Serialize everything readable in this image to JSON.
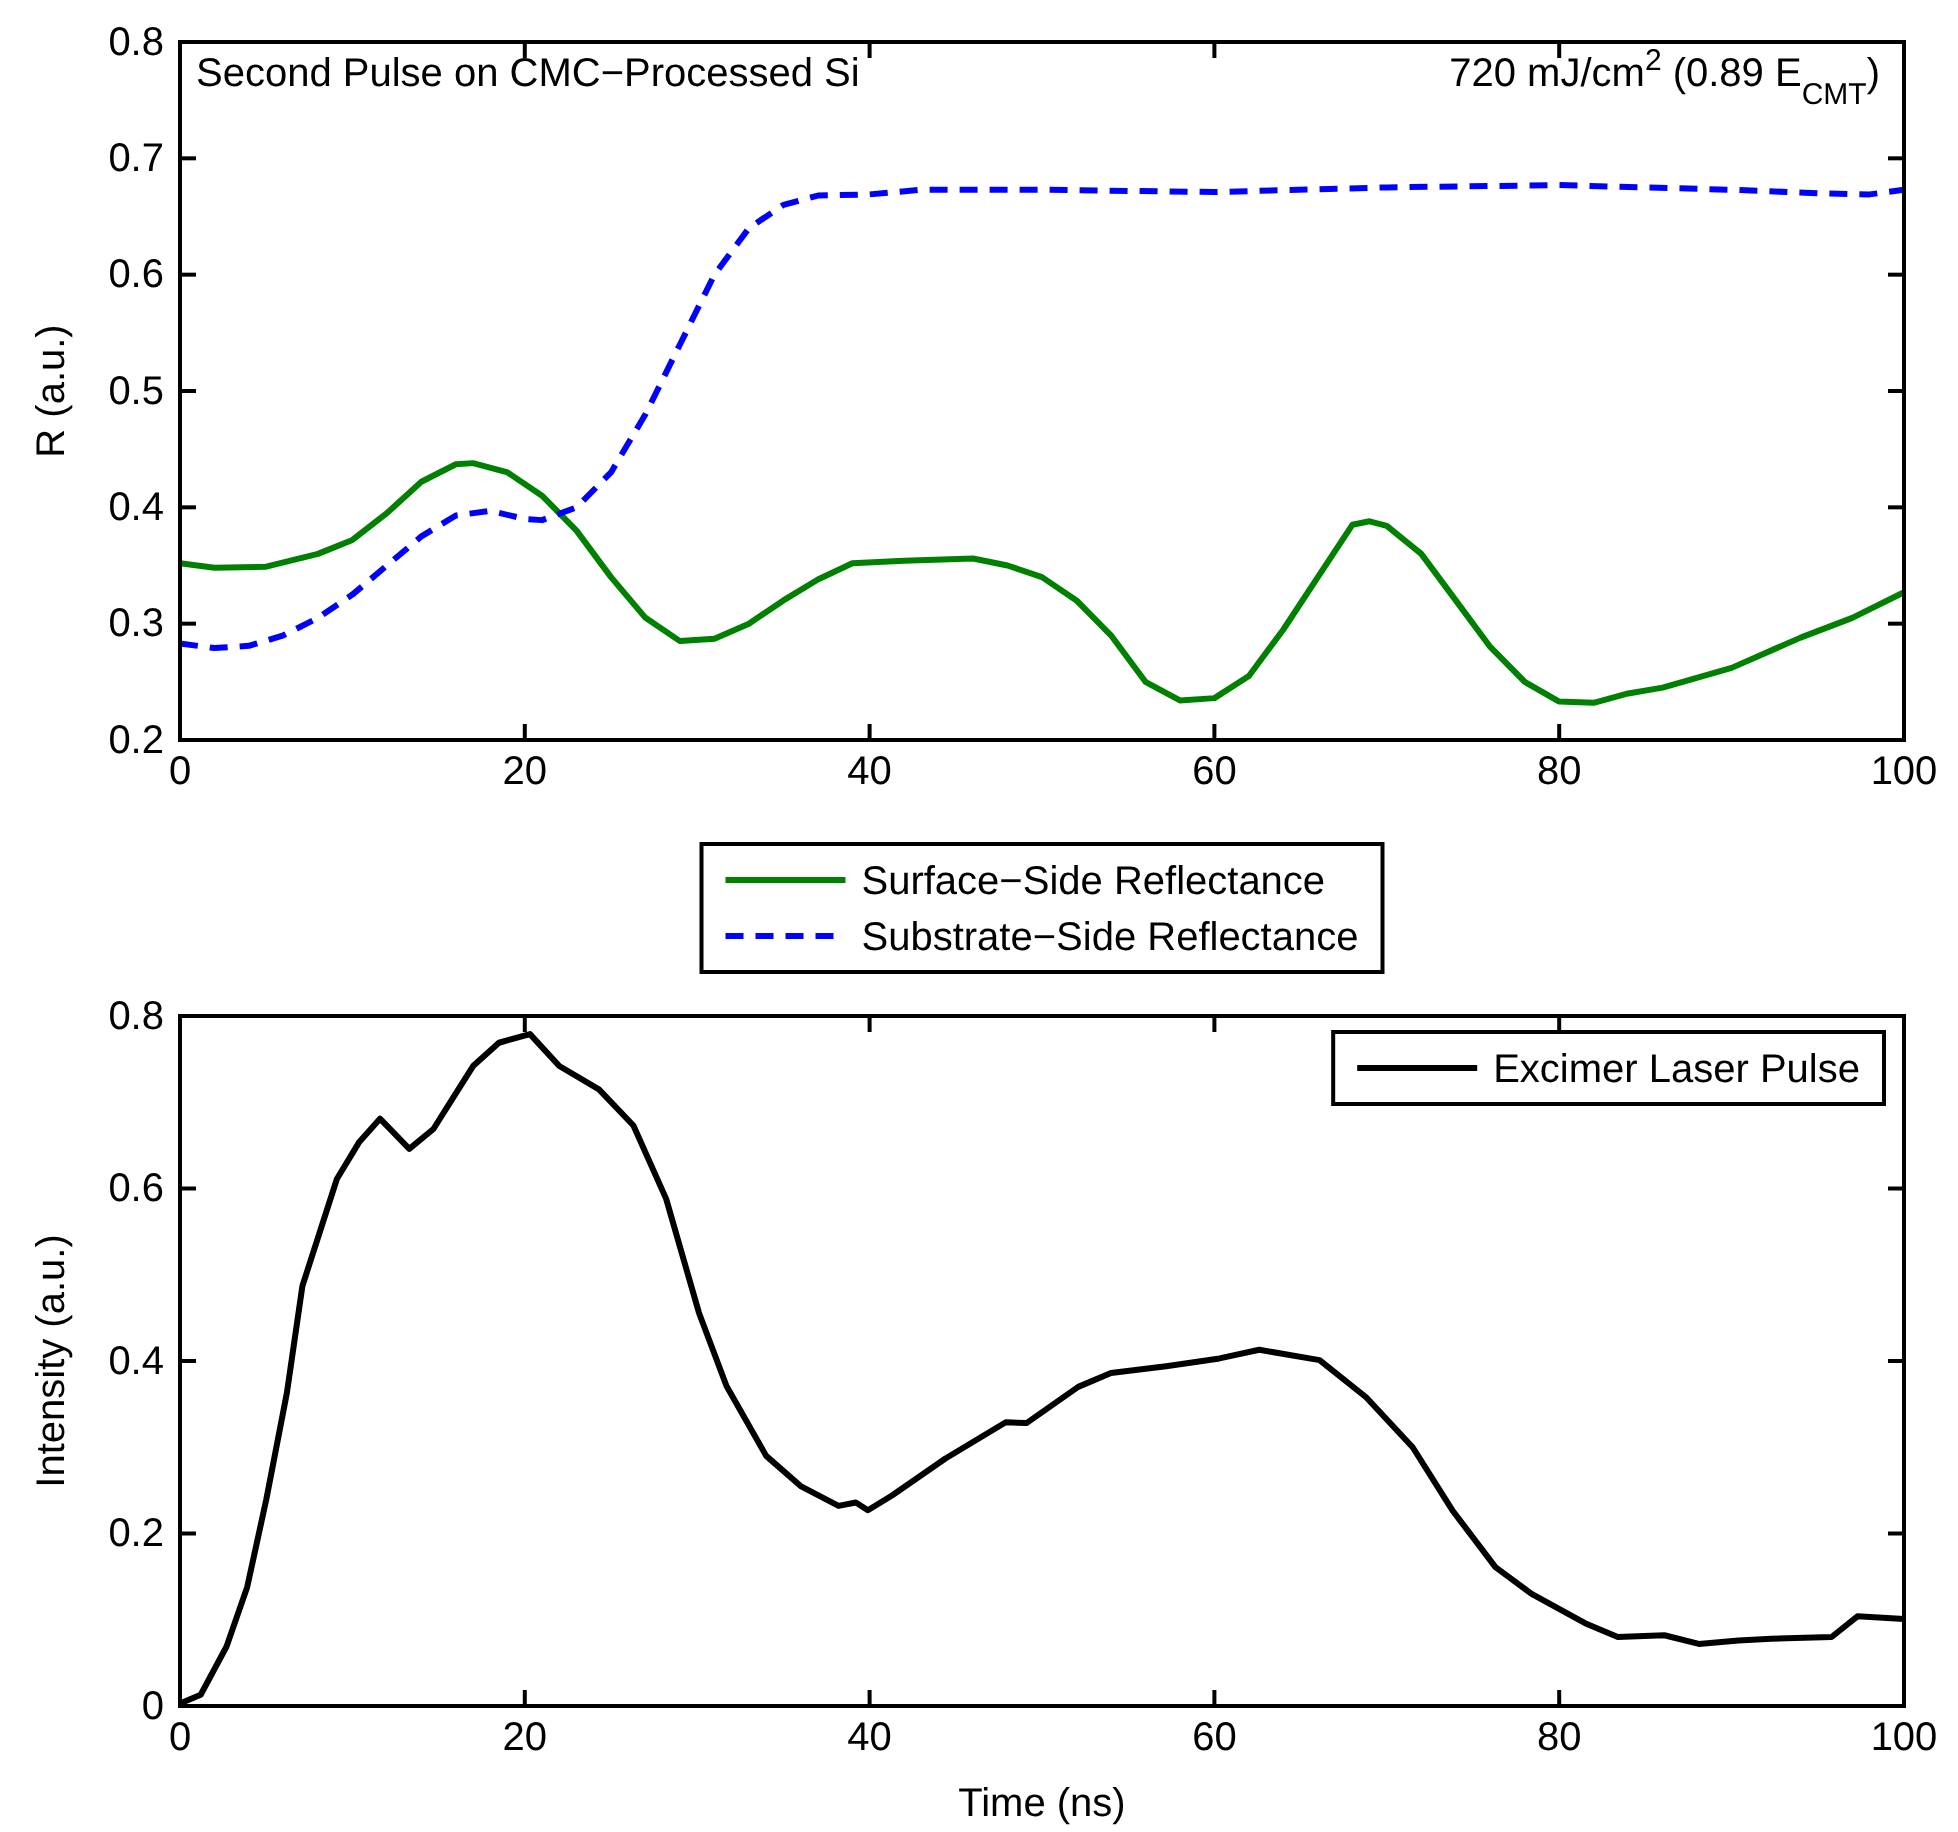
{
  "chart_data": [
    {
      "type": "line",
      "ylabel": "R (a.u.)",
      "annotations": [
        "Second Pulse on CMC−Processed Si",
        "720 mJ/cm$^{2}$ (0.89 E$_{CMT}$)"
      ],
      "xlim": [
        0,
        100
      ],
      "xticks": [
        0,
        20,
        40,
        60,
        80,
        100
      ],
      "ylim": [
        0.2,
        0.8
      ],
      "yticks": [
        0.2,
        0.3,
        0.4,
        0.5,
        0.6,
        0.7,
        0.8
      ],
      "legend": "bottom",
      "grid": false,
      "series": [
        {
          "name": "Surface−Side Reflectance",
          "color": "#008000",
          "line_style": "solid",
          "x": [
            0,
            2,
            5,
            8,
            10,
            12,
            14,
            16,
            17,
            19,
            21,
            23,
            25,
            27,
            29,
            31,
            33,
            35,
            37,
            39,
            42,
            46,
            48,
            50,
            52,
            54,
            56,
            58,
            60,
            62,
            64,
            66,
            68,
            69,
            70,
            72,
            74,
            76,
            78,
            80,
            82,
            84,
            86,
            90,
            94,
            97,
            100
          ],
          "values": [
            0.352,
            0.348,
            0.349,
            0.36,
            0.372,
            0.395,
            0.422,
            0.437,
            0.438,
            0.43,
            0.41,
            0.38,
            0.34,
            0.305,
            0.285,
            0.287,
            0.3,
            0.32,
            0.338,
            0.352,
            0.354,
            0.356,
            0.35,
            0.34,
            0.32,
            0.29,
            0.25,
            0.234,
            0.236,
            0.255,
            0.295,
            0.34,
            0.385,
            0.388,
            0.384,
            0.36,
            0.32,
            0.28,
            0.25,
            0.233,
            0.232,
            0.24,
            0.245,
            0.262,
            0.288,
            0.305,
            0.327
          ]
        },
        {
          "name": "Substrate−Side Reflectance",
          "color": "#0000ff",
          "line_style": "dashed",
          "x": [
            0,
            2,
            4,
            6,
            8,
            10,
            12,
            14,
            16,
            18,
            20,
            21,
            23,
            25,
            27,
            29,
            31,
            33,
            35,
            37,
            40,
            43,
            50,
            60,
            70,
            80,
            90,
            95,
            98,
            100
          ],
          "values": [
            0.283,
            0.279,
            0.281,
            0.29,
            0.305,
            0.325,
            0.35,
            0.375,
            0.393,
            0.397,
            0.39,
            0.389,
            0.4,
            0.43,
            0.48,
            0.54,
            0.6,
            0.64,
            0.66,
            0.668,
            0.669,
            0.673,
            0.673,
            0.671,
            0.675,
            0.677,
            0.673,
            0.67,
            0.669,
            0.673
          ]
        }
      ]
    },
    {
      "type": "line",
      "xlabel": "Time (ns)",
      "ylabel": "Intensity (a.u.)",
      "xlim": [
        0,
        100
      ],
      "xticks": [
        0,
        20,
        40,
        60,
        80,
        100
      ],
      "ylim": [
        0,
        0.8
      ],
      "yticks": [
        0,
        0.2,
        0.4,
        0.6,
        0.8
      ],
      "legend": "top right",
      "grid": false,
      "series": [
        {
          "name": "Excimer Laser Pulse",
          "color": "#000000",
          "line_style": "solid",
          "x": [
            0,
            1.2,
            2.7,
            3.9,
            5,
            6.2,
            7.1,
            8.1,
            9.1,
            10.4,
            11.6,
            13.3,
            14.7,
            15.8,
            17,
            18.5,
            20.3,
            22,
            24.3,
            26.3,
            28.2,
            30.1,
            31.7,
            34,
            36,
            38.2,
            39.2,
            39.9,
            41.3,
            44.4,
            47.9,
            49.1,
            52.1,
            54,
            57.2,
            60.3,
            62.6,
            66.1,
            68.8,
            71.5,
            73.8,
            76.3,
            78.4,
            81.5,
            83.4,
            86.1,
            88.1,
            90.4,
            92.3,
            95.8,
            97.3,
            100
          ],
          "values": [
            0.003,
            0.013,
            0.069,
            0.138,
            0.239,
            0.363,
            0.487,
            0.549,
            0.611,
            0.654,
            0.681,
            0.646,
            0.669,
            0.704,
            0.742,
            0.769,
            0.779,
            0.742,
            0.715,
            0.673,
            0.588,
            0.456,
            0.371,
            0.29,
            0.255,
            0.232,
            0.236,
            0.227,
            0.244,
            0.287,
            0.329,
            0.328,
            0.37,
            0.386,
            0.394,
            0.403,
            0.413,
            0.401,
            0.358,
            0.3,
            0.227,
            0.161,
            0.13,
            0.096,
            0.08,
            0.082,
            0.072,
            0.076,
            0.078,
            0.08,
            0.104,
            0.101
          ]
        }
      ]
    }
  ]
}
